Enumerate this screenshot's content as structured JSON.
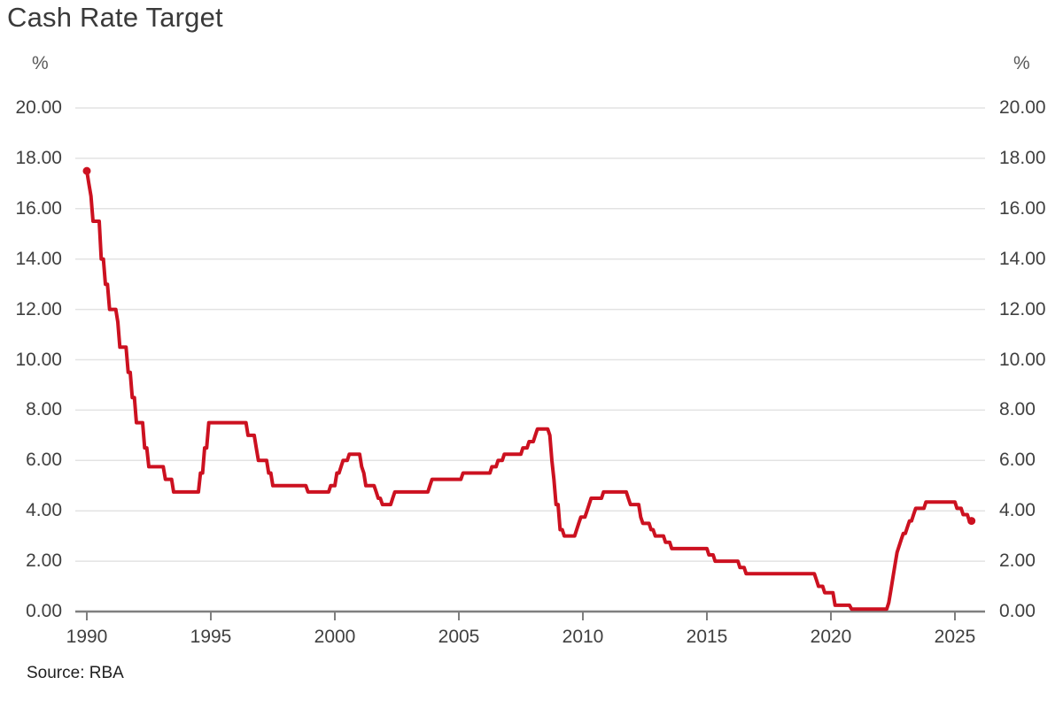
{
  "source": "Source: RBA",
  "chart_data": {
    "type": "line",
    "title": "Cash Rate Target",
    "y_unit": "%",
    "xlabel": "",
    "ylabel": "%",
    "legend": "none",
    "grid": true,
    "x_range": [
      1989.54,
      2026.21
    ],
    "y_range": [
      0,
      20
    ],
    "line_color": "#cc1120",
    "grid_color": "#e3e3e3",
    "axis_color": "#7f7f7f",
    "x_ticks": [
      {
        "v": 1990,
        "label": "1990"
      },
      {
        "v": 1995,
        "label": "1995"
      },
      {
        "v": 2000,
        "label": "2000"
      },
      {
        "v": 2005,
        "label": "2005"
      },
      {
        "v": 2010,
        "label": "2010"
      },
      {
        "v": 2015,
        "label": "2015"
      },
      {
        "v": 2020,
        "label": "2020"
      },
      {
        "v": 2025,
        "label": "2025"
      }
    ],
    "y_ticks": [
      {
        "v": 0,
        "label": "0.00"
      },
      {
        "v": 2,
        "label": "2.00"
      },
      {
        "v": 4,
        "label": "4.00"
      },
      {
        "v": 6,
        "label": "6.00"
      },
      {
        "v": 8,
        "label": "8.00"
      },
      {
        "v": 10,
        "label": "10.00"
      },
      {
        "v": 12,
        "label": "12.00"
      },
      {
        "v": 14,
        "label": "14.00"
      },
      {
        "v": 16,
        "label": "16.00"
      },
      {
        "v": 18,
        "label": "18.00"
      },
      {
        "v": 20,
        "label": "20.00"
      }
    ],
    "series": [
      {
        "name": "Cash Rate Target",
        "interpolation": "monthly-step",
        "start": "1990-01",
        "end": "2025-09",
        "changes": [
          [
            "1990-01",
            17.5
          ],
          [
            "1990-02",
            17.0
          ],
          [
            "1990-03",
            16.5
          ],
          [
            "1990-04",
            15.5
          ],
          [
            "1990-08",
            14.0
          ],
          [
            "1990-10",
            13.0
          ],
          [
            "1990-12",
            12.0
          ],
          [
            "1991-04",
            11.5
          ],
          [
            "1991-05",
            10.5
          ],
          [
            "1991-09",
            9.5
          ],
          [
            "1991-11",
            8.5
          ],
          [
            "1992-01",
            7.5
          ],
          [
            "1992-05",
            6.5
          ],
          [
            "1992-07",
            5.75
          ],
          [
            "1993-03",
            5.25
          ],
          [
            "1993-07",
            4.75
          ],
          [
            "1994-08",
            5.5
          ],
          [
            "1994-10",
            6.5
          ],
          [
            "1994-12",
            7.5
          ],
          [
            "1996-07",
            7.0
          ],
          [
            "1996-11",
            6.5
          ],
          [
            "1996-12",
            6.0
          ],
          [
            "1997-05",
            5.5
          ],
          [
            "1997-07",
            5.0
          ],
          [
            "1998-12",
            4.75
          ],
          [
            "1999-11",
            5.0
          ],
          [
            "2000-02",
            5.5
          ],
          [
            "2000-04",
            5.75
          ],
          [
            "2000-05",
            6.0
          ],
          [
            "2000-08",
            6.25
          ],
          [
            "2001-02",
            5.75
          ],
          [
            "2001-03",
            5.5
          ],
          [
            "2001-04",
            5.0
          ],
          [
            "2001-09",
            4.75
          ],
          [
            "2001-10",
            4.5
          ],
          [
            "2001-12",
            4.25
          ],
          [
            "2002-05",
            4.5
          ],
          [
            "2002-06",
            4.75
          ],
          [
            "2003-11",
            5.0
          ],
          [
            "2003-12",
            5.25
          ],
          [
            "2005-03",
            5.5
          ],
          [
            "2006-05",
            5.75
          ],
          [
            "2006-08",
            6.0
          ],
          [
            "2006-11",
            6.25
          ],
          [
            "2007-08",
            6.5
          ],
          [
            "2007-11",
            6.75
          ],
          [
            "2008-02",
            7.0
          ],
          [
            "2008-03",
            7.25
          ],
          [
            "2008-09",
            7.0
          ],
          [
            "2008-10",
            6.0
          ],
          [
            "2008-11",
            5.25
          ],
          [
            "2008-12",
            4.25
          ],
          [
            "2009-02",
            3.25
          ],
          [
            "2009-04",
            3.0
          ],
          [
            "2009-10",
            3.25
          ],
          [
            "2009-11",
            3.5
          ],
          [
            "2009-12",
            3.75
          ],
          [
            "2010-03",
            4.0
          ],
          [
            "2010-04",
            4.25
          ],
          [
            "2010-05",
            4.5
          ],
          [
            "2010-11",
            4.75
          ],
          [
            "2011-11",
            4.5
          ],
          [
            "2011-12",
            4.25
          ],
          [
            "2012-05",
            3.75
          ],
          [
            "2012-06",
            3.5
          ],
          [
            "2012-10",
            3.25
          ],
          [
            "2012-12",
            3.0
          ],
          [
            "2013-05",
            2.75
          ],
          [
            "2013-08",
            2.5
          ],
          [
            "2015-02",
            2.25
          ],
          [
            "2015-05",
            2.0
          ],
          [
            "2016-05",
            1.75
          ],
          [
            "2016-08",
            1.5
          ],
          [
            "2019-06",
            1.25
          ],
          [
            "2019-07",
            1.0
          ],
          [
            "2019-10",
            0.75
          ],
          [
            "2020-03",
            0.25
          ],
          [
            "2020-11",
            0.1
          ],
          [
            "2022-05",
            0.35
          ],
          [
            "2022-06",
            0.85
          ],
          [
            "2022-07",
            1.35
          ],
          [
            "2022-08",
            1.85
          ],
          [
            "2022-09",
            2.35
          ],
          [
            "2022-10",
            2.6
          ],
          [
            "2022-11",
            2.85
          ],
          [
            "2022-12",
            3.1
          ],
          [
            "2023-02",
            3.35
          ],
          [
            "2023-03",
            3.6
          ],
          [
            "2023-05",
            3.85
          ],
          [
            "2023-06",
            4.1
          ],
          [
            "2023-11",
            4.35
          ],
          [
            "2025-02",
            4.1
          ],
          [
            "2025-05",
            3.85
          ],
          [
            "2025-08",
            3.6
          ]
        ]
      }
    ]
  }
}
